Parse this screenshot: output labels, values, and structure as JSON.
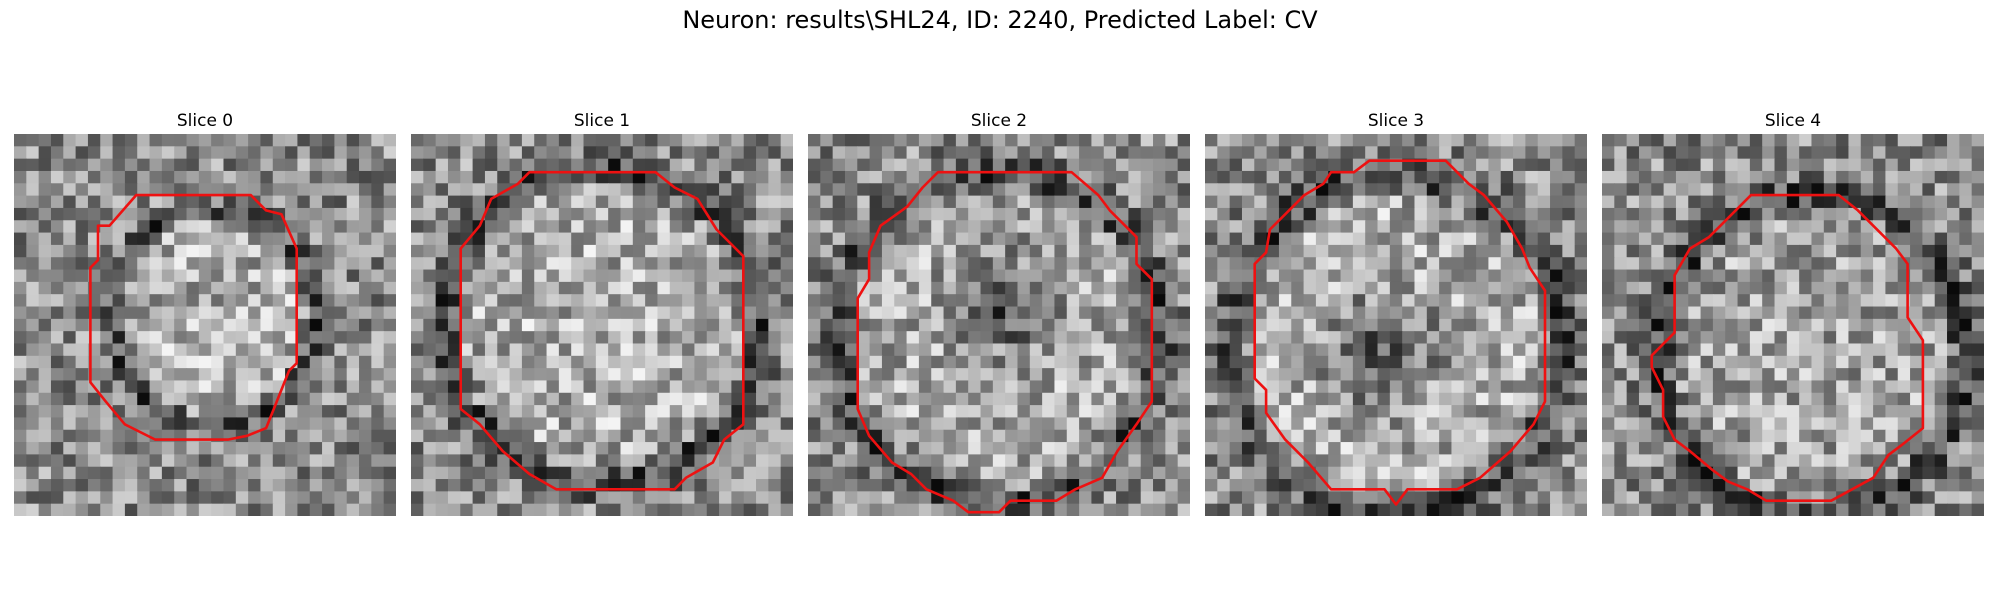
{
  "suptitle": "Neuron: results\\SHL24, ID: 2240, Predicted Label: CV",
  "panels": [
    {
      "title": "Slice 0",
      "seed": 11,
      "ring": [
        0.52,
        0.48,
        0.26,
        0.27
      ],
      "core": [
        0.52,
        0.5,
        0.0
      ],
      "bright": 0.72,
      "contour": [
        [
          0.32,
          0.16
        ],
        [
          0.62,
          0.16
        ],
        [
          0.66,
          0.2
        ],
        [
          0.7,
          0.21
        ],
        [
          0.74,
          0.3
        ],
        [
          0.74,
          0.6
        ],
        [
          0.72,
          0.62
        ],
        [
          0.68,
          0.72
        ],
        [
          0.66,
          0.77
        ],
        [
          0.61,
          0.79
        ],
        [
          0.56,
          0.8
        ],
        [
          0.37,
          0.8
        ],
        [
          0.29,
          0.76
        ],
        [
          0.24,
          0.7
        ],
        [
          0.2,
          0.65
        ],
        [
          0.2,
          0.35
        ],
        [
          0.22,
          0.33
        ],
        [
          0.22,
          0.24
        ],
        [
          0.25,
          0.24
        ]
      ]
    },
    {
      "title": "Slice 1",
      "seed": 23,
      "ring": [
        0.5,
        0.5,
        0.4,
        0.4
      ],
      "core": [
        0.5,
        0.5,
        0.0
      ],
      "bright": 0.72,
      "contour": [
        [
          0.31,
          0.1
        ],
        [
          0.64,
          0.1
        ],
        [
          0.69,
          0.14
        ],
        [
          0.75,
          0.17
        ],
        [
          0.8,
          0.25
        ],
        [
          0.87,
          0.32
        ],
        [
          0.87,
          0.76
        ],
        [
          0.82,
          0.8
        ],
        [
          0.79,
          0.86
        ],
        [
          0.72,
          0.9
        ],
        [
          0.69,
          0.93
        ],
        [
          0.38,
          0.93
        ],
        [
          0.31,
          0.89
        ],
        [
          0.24,
          0.83
        ],
        [
          0.18,
          0.76
        ],
        [
          0.13,
          0.72
        ],
        [
          0.13,
          0.3
        ],
        [
          0.18,
          0.24
        ],
        [
          0.21,
          0.17
        ],
        [
          0.28,
          0.13
        ]
      ]
    },
    {
      "title": "Slice 2",
      "seed": 37,
      "ring": [
        0.5,
        0.53,
        0.41,
        0.42
      ],
      "core": [
        0.53,
        0.45,
        0.09
      ],
      "bright": 0.7,
      "contour": [
        [
          0.34,
          0.1
        ],
        [
          0.69,
          0.1
        ],
        [
          0.76,
          0.16
        ],
        [
          0.79,
          0.2
        ],
        [
          0.86,
          0.27
        ],
        [
          0.86,
          0.34
        ],
        [
          0.9,
          0.38
        ],
        [
          0.9,
          0.7
        ],
        [
          0.86,
          0.76
        ],
        [
          0.81,
          0.83
        ],
        [
          0.77,
          0.9
        ],
        [
          0.7,
          0.93
        ],
        [
          0.65,
          0.96
        ],
        [
          0.53,
          0.96
        ],
        [
          0.5,
          0.99
        ],
        [
          0.42,
          0.99
        ],
        [
          0.38,
          0.96
        ],
        [
          0.31,
          0.93
        ],
        [
          0.27,
          0.89
        ],
        [
          0.22,
          0.86
        ],
        [
          0.16,
          0.79
        ],
        [
          0.13,
          0.72
        ],
        [
          0.13,
          0.43
        ],
        [
          0.16,
          0.38
        ],
        [
          0.16,
          0.31
        ],
        [
          0.19,
          0.24
        ],
        [
          0.26,
          0.19
        ],
        [
          0.3,
          0.14
        ]
      ]
    },
    {
      "title": "Slice 3",
      "seed": 51,
      "ring": [
        0.5,
        0.55,
        0.42,
        0.43
      ],
      "core": [
        0.46,
        0.58,
        0.1
      ],
      "bright": 0.72,
      "contour": [
        [
          0.43,
          0.07
        ],
        [
          0.63,
          0.07
        ],
        [
          0.69,
          0.13
        ],
        [
          0.73,
          0.16
        ],
        [
          0.79,
          0.23
        ],
        [
          0.83,
          0.3
        ],
        [
          0.85,
          0.35
        ],
        [
          0.89,
          0.41
        ],
        [
          0.89,
          0.7
        ],
        [
          0.86,
          0.76
        ],
        [
          0.8,
          0.83
        ],
        [
          0.72,
          0.9
        ],
        [
          0.66,
          0.93
        ],
        [
          0.53,
          0.93
        ],
        [
          0.5,
          0.97
        ],
        [
          0.47,
          0.93
        ],
        [
          0.33,
          0.93
        ],
        [
          0.27,
          0.86
        ],
        [
          0.21,
          0.8
        ],
        [
          0.16,
          0.73
        ],
        [
          0.16,
          0.67
        ],
        [
          0.13,
          0.64
        ],
        [
          0.13,
          0.34
        ],
        [
          0.16,
          0.31
        ],
        [
          0.17,
          0.25
        ],
        [
          0.23,
          0.19
        ],
        [
          0.26,
          0.16
        ],
        [
          0.31,
          0.13
        ],
        [
          0.33,
          0.1
        ],
        [
          0.39,
          0.1
        ]
      ]
    },
    {
      "title": "Slice 4",
      "seed": 67,
      "ring": [
        0.55,
        0.58,
        0.39,
        0.41
      ],
      "core": [
        0.55,
        0.55,
        0.0
      ],
      "bright": 0.66,
      "contour": [
        [
          0.39,
          0.16
        ],
        [
          0.62,
          0.16
        ],
        [
          0.67,
          0.2
        ],
        [
          0.71,
          0.24
        ],
        [
          0.77,
          0.3
        ],
        [
          0.8,
          0.34
        ],
        [
          0.8,
          0.48
        ],
        [
          0.84,
          0.54
        ],
        [
          0.84,
          0.77
        ],
        [
          0.79,
          0.81
        ],
        [
          0.75,
          0.84
        ],
        [
          0.71,
          0.9
        ],
        [
          0.6,
          0.96
        ],
        [
          0.43,
          0.96
        ],
        [
          0.38,
          0.93
        ],
        [
          0.33,
          0.91
        ],
        [
          0.29,
          0.88
        ],
        [
          0.23,
          0.83
        ],
        [
          0.19,
          0.8
        ],
        [
          0.16,
          0.74
        ],
        [
          0.16,
          0.67
        ],
        [
          0.13,
          0.61
        ],
        [
          0.13,
          0.58
        ],
        [
          0.16,
          0.55
        ],
        [
          0.19,
          0.52
        ],
        [
          0.19,
          0.37
        ],
        [
          0.23,
          0.3
        ],
        [
          0.28,
          0.27
        ],
        [
          0.32,
          0.23
        ]
      ]
    }
  ],
  "contour_color": "#ee1111"
}
